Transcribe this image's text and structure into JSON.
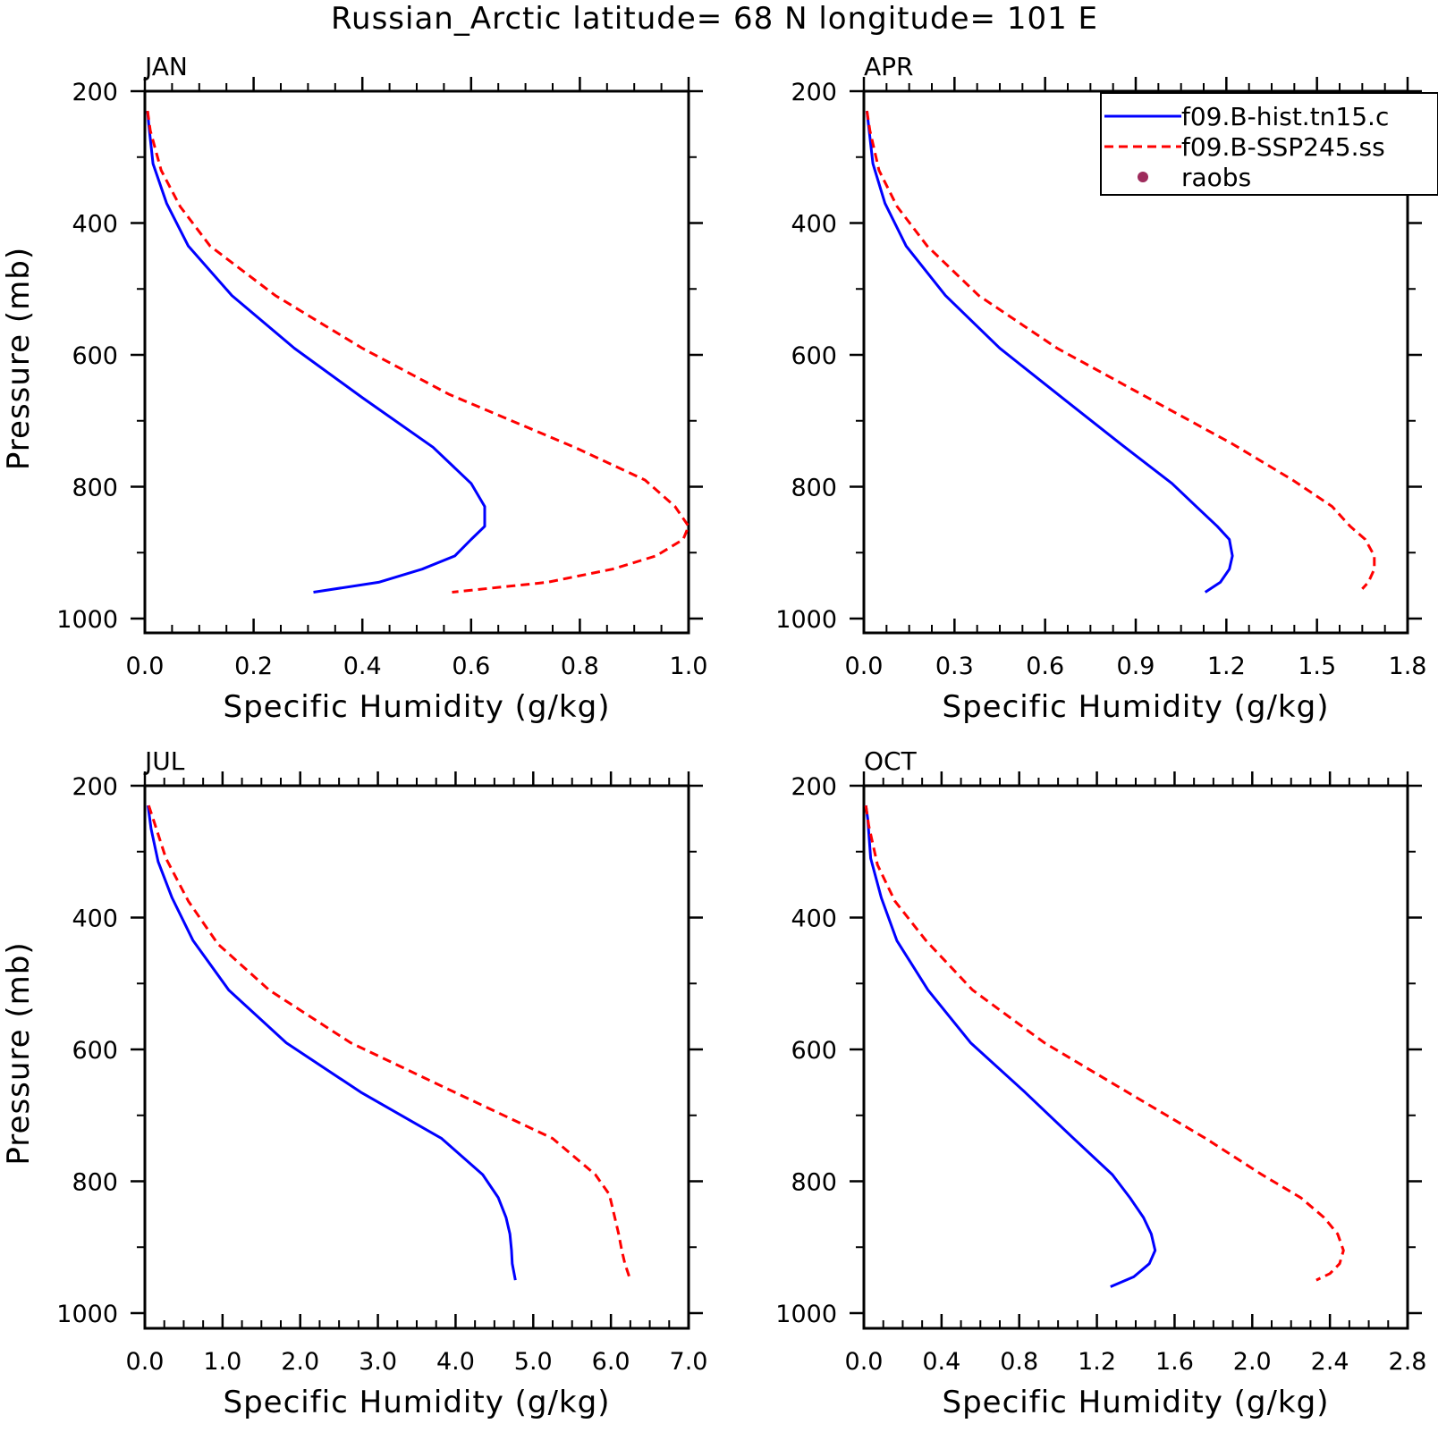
{
  "title": "Russian_Arctic   latitude=  68 N longitude=  101 E",
  "legend": {
    "entries": [
      {
        "label": "f09.B-hist.tn15.c",
        "color": "#0000ff",
        "style": "solid"
      },
      {
        "label": "f09.B-SSP245.ss",
        "color": "#ff0000",
        "style": "dashed"
      },
      {
        "label": "raobs",
        "color": "#9e2b5c",
        "style": "marker"
      }
    ]
  },
  "chart_data": [
    {
      "type": "line",
      "panel": "JAN",
      "xlabel": "Specific Humidity (g/kg)",
      "ylabel": "Pressure (mb)",
      "xlim": [
        0.0,
        1.0
      ],
      "ylim": [
        1000,
        200
      ],
      "xticks": [
        "0.0",
        "0.2",
        "0.4",
        "0.6",
        "0.8",
        "1.0"
      ],
      "yticks": [
        "200",
        "400",
        "600",
        "800",
        "1000"
      ],
      "series": [
        {
          "name": "f09.B-hist.tn15.c",
          "color": "#0000ff",
          "style": "solid",
          "points": [
            [
              0.005,
              230
            ],
            [
              0.007,
              250
            ],
            [
              0.015,
              310
            ],
            [
              0.04,
              370
            ],
            [
              0.08,
              435
            ],
            [
              0.16,
              510
            ],
            [
              0.275,
              590
            ],
            [
              0.4,
              665
            ],
            [
              0.53,
              740
            ],
            [
              0.6,
              795
            ],
            [
              0.625,
              830
            ],
            [
              0.625,
              860
            ],
            [
              0.6,
              880
            ],
            [
              0.57,
              905
            ],
            [
              0.51,
              925
            ],
            [
              0.43,
              945
            ],
            [
              0.31,
              960
            ]
          ]
        },
        {
          "name": "f09.B-SSP245.ss",
          "color": "#ff0000",
          "style": "dashed",
          "points": [
            [
              0.005,
              230
            ],
            [
              0.01,
              260
            ],
            [
              0.03,
              320
            ],
            [
              0.065,
              375
            ],
            [
              0.12,
              435
            ],
            [
              0.24,
              510
            ],
            [
              0.4,
              590
            ],
            [
              0.56,
              660
            ],
            [
              0.79,
              740
            ],
            [
              0.92,
              790
            ],
            [
              0.975,
              830
            ],
            [
              1.0,
              860
            ],
            [
              0.99,
              880
            ],
            [
              0.94,
              905
            ],
            [
              0.86,
              925
            ],
            [
              0.74,
              945
            ],
            [
              0.565,
              960
            ]
          ]
        }
      ]
    },
    {
      "type": "line",
      "panel": "APR",
      "xlabel": "Specific Humidity (g/kg)",
      "ylabel": "",
      "xlim": [
        0.0,
        1.8
      ],
      "ylim": [
        1000,
        200
      ],
      "xticks": [
        "0.0",
        "0.3",
        "0.6",
        "0.9",
        "1.2",
        "1.5",
        "1.8"
      ],
      "yticks": [
        "200",
        "400",
        "600",
        "800",
        "1000"
      ],
      "series": [
        {
          "name": "f09.B-hist.tn15.c",
          "color": "#0000ff",
          "style": "solid",
          "points": [
            [
              0.01,
              230
            ],
            [
              0.015,
              250
            ],
            [
              0.03,
              310
            ],
            [
              0.07,
              370
            ],
            [
              0.14,
              435
            ],
            [
              0.27,
              510
            ],
            [
              0.45,
              590
            ],
            [
              0.67,
              670
            ],
            [
              0.85,
              735
            ],
            [
              1.02,
              795
            ],
            [
              1.1,
              830
            ],
            [
              1.17,
              860
            ],
            [
              1.21,
              880
            ],
            [
              1.22,
              905
            ],
            [
              1.21,
              925
            ],
            [
              1.18,
              945
            ],
            [
              1.13,
              960
            ]
          ]
        },
        {
          "name": "f09.B-SSP245.ss",
          "color": "#ff0000",
          "style": "dashed",
          "points": [
            [
              0.01,
              230
            ],
            [
              0.02,
              260
            ],
            [
              0.05,
              320
            ],
            [
              0.11,
              375
            ],
            [
              0.21,
              435
            ],
            [
              0.38,
              510
            ],
            [
              0.64,
              590
            ],
            [
              0.92,
              660
            ],
            [
              1.22,
              735
            ],
            [
              1.42,
              790
            ],
            [
              1.55,
              830
            ],
            [
              1.61,
              860
            ],
            [
              1.66,
              880
            ],
            [
              1.69,
              905
            ],
            [
              1.69,
              925
            ],
            [
              1.67,
              945
            ],
            [
              1.65,
              955
            ]
          ]
        }
      ]
    },
    {
      "type": "line",
      "panel": "JUL",
      "xlabel": "Specific Humidity (g/kg)",
      "ylabel": "Pressure (mb)",
      "xlim": [
        0.0,
        7.0
      ],
      "ylim": [
        1000,
        200
      ],
      "xticks": [
        "0.0",
        "1.0",
        "2.0",
        "3.0",
        "4.0",
        "5.0",
        "6.0",
        "7.0"
      ],
      "yticks": [
        "200",
        "400",
        "600",
        "800",
        "1000"
      ],
      "series": [
        {
          "name": "f09.B-hist.tn15.c",
          "color": "#0000ff",
          "style": "solid",
          "points": [
            [
              0.04,
              230
            ],
            [
              0.08,
              265
            ],
            [
              0.17,
              315
            ],
            [
              0.35,
              370
            ],
            [
              0.62,
              435
            ],
            [
              1.08,
              510
            ],
            [
              1.82,
              590
            ],
            [
              2.78,
              665
            ],
            [
              3.82,
              735
            ],
            [
              4.35,
              790
            ],
            [
              4.55,
              825
            ],
            [
              4.65,
              855
            ],
            [
              4.7,
              880
            ],
            [
              4.72,
              905
            ],
            [
              4.73,
              925
            ],
            [
              4.77,
              950
            ]
          ]
        },
        {
          "name": "f09.B-SSP245.ss",
          "color": "#ff0000",
          "style": "dashed",
          "points": [
            [
              0.05,
              230
            ],
            [
              0.12,
              255
            ],
            [
              0.27,
              310
            ],
            [
              0.56,
              375
            ],
            [
              0.94,
              440
            ],
            [
              1.6,
              510
            ],
            [
              2.65,
              590
            ],
            [
              3.9,
              660
            ],
            [
              5.25,
              735
            ],
            [
              5.8,
              790
            ],
            [
              5.98,
              820
            ],
            [
              6.05,
              855
            ],
            [
              6.1,
              880
            ],
            [
              6.14,
              905
            ],
            [
              6.18,
              925
            ],
            [
              6.25,
              950
            ]
          ]
        }
      ]
    },
    {
      "type": "line",
      "panel": "OCT",
      "xlabel": "Specific Humidity (g/kg)",
      "ylabel": "",
      "xlim": [
        0.0,
        2.8
      ],
      "ylim": [
        1000,
        200
      ],
      "xticks": [
        "0.0",
        "0.4",
        "0.8",
        "1.2",
        "1.6",
        "2.0",
        "2.4",
        "2.8"
      ],
      "yticks": [
        "200",
        "400",
        "600",
        "800",
        "1000"
      ],
      "series": [
        {
          "name": "f09.B-hist.tn15.c",
          "color": "#0000ff",
          "style": "solid",
          "points": [
            [
              0.01,
              230
            ],
            [
              0.02,
              250
            ],
            [
              0.035,
              310
            ],
            [
              0.09,
              370
            ],
            [
              0.17,
              435
            ],
            [
              0.33,
              510
            ],
            [
              0.55,
              590
            ],
            [
              0.83,
              665
            ],
            [
              1.08,
              735
            ],
            [
              1.28,
              790
            ],
            [
              1.37,
              825
            ],
            [
              1.44,
              855
            ],
            [
              1.48,
              880
            ],
            [
              1.5,
              905
            ],
            [
              1.47,
              925
            ],
            [
              1.39,
              945
            ],
            [
              1.27,
              960
            ]
          ]
        },
        {
          "name": "f09.B-SSP245.ss",
          "color": "#ff0000",
          "style": "dashed",
          "points": [
            [
              0.01,
              230
            ],
            [
              0.025,
              260
            ],
            [
              0.07,
              320
            ],
            [
              0.16,
              375
            ],
            [
              0.32,
              435
            ],
            [
              0.56,
              510
            ],
            [
              0.93,
              590
            ],
            [
              1.33,
              660
            ],
            [
              1.76,
              735
            ],
            [
              2.05,
              790
            ],
            [
              2.25,
              825
            ],
            [
              2.37,
              855
            ],
            [
              2.44,
              880
            ],
            [
              2.47,
              905
            ],
            [
              2.45,
              925
            ],
            [
              2.4,
              940
            ],
            [
              2.33,
              950
            ]
          ]
        }
      ]
    }
  ]
}
